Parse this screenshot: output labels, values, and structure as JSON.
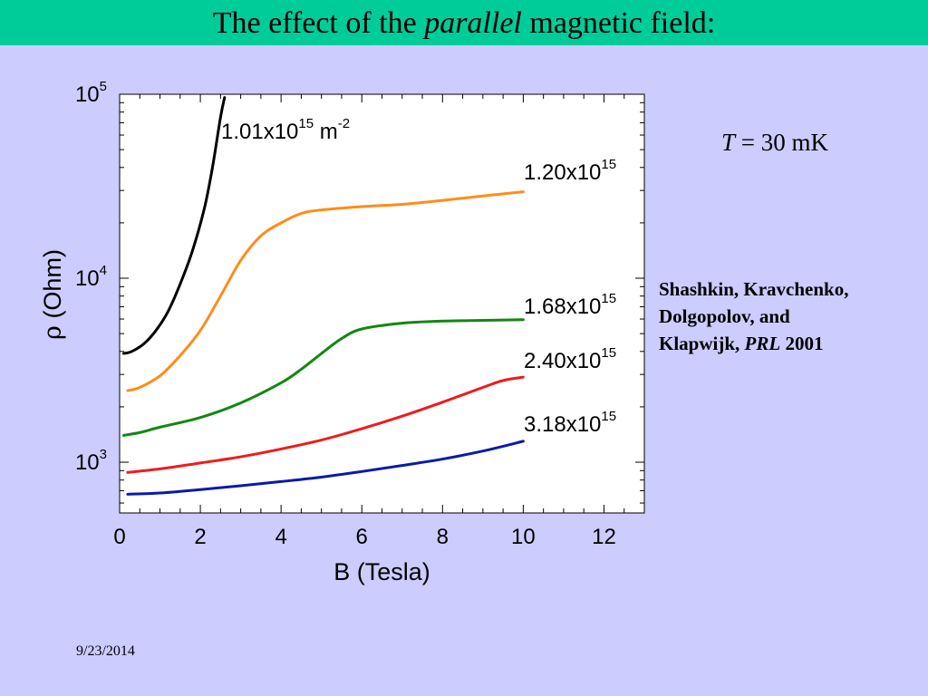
{
  "slide": {
    "title_before": "The effect of the ",
    "title_emph": "parallel",
    "title_after": " magnetic field:",
    "temperature_symbol": "T",
    "temperature_value": " = 30 mK",
    "citation_line1": "Shashkin, Kravchenko,",
    "citation_line2": "Dolgopolov, and",
    "citation_line3_before": "Klapwijk, ",
    "citation_journal": "PRL",
    "citation_year": " 2001",
    "date": "9/23/2014"
  },
  "colors": {
    "title_bar": "#00cc99",
    "background": "#ccccff",
    "plot_area": "#ffffff"
  },
  "chart_data": {
    "type": "line",
    "xlabel": "B (Tesla)",
    "ylabel_symbol": "ρ",
    "ylabel_unit": " (Ohm)",
    "xlim": [
      0,
      13
    ],
    "ylim": [
      530,
      100000
    ],
    "yscale": "log",
    "x_ticks": [
      0,
      2,
      4,
      6,
      8,
      10,
      12
    ],
    "y_ticks": [
      {
        "value": 1000,
        "base": "10",
        "exp": "3"
      },
      {
        "value": 10000,
        "base": "10",
        "exp": "4"
      },
      {
        "value": 100000,
        "base": "10",
        "exp": "5"
      }
    ],
    "series": [
      {
        "label": "1.01x10",
        "label_exp": "15",
        "label_suffix": " m",
        "label_suffix_exp": "-2",
        "color": "#000000",
        "points": [
          [
            0.1,
            3900
          ],
          [
            0.3,
            4000
          ],
          [
            0.6,
            4400
          ],
          [
            0.9,
            5200
          ],
          [
            1.2,
            6600
          ],
          [
            1.5,
            9300
          ],
          [
            1.8,
            14000
          ],
          [
            2.1,
            24000
          ],
          [
            2.3,
            40000
          ],
          [
            2.5,
            75000
          ],
          [
            2.6,
            96000
          ]
        ]
      },
      {
        "label": "1.20x10",
        "label_exp": "15",
        "color": "#ff8c1a",
        "points": [
          [
            0.2,
            2450
          ],
          [
            0.5,
            2550
          ],
          [
            1.0,
            2950
          ],
          [
            1.5,
            3800
          ],
          [
            2.0,
            5200
          ],
          [
            2.5,
            8000
          ],
          [
            3.0,
            12500
          ],
          [
            3.5,
            17000
          ],
          [
            4.0,
            20000
          ],
          [
            4.5,
            22500
          ],
          [
            5.0,
            23500
          ],
          [
            6.0,
            24500
          ],
          [
            7.0,
            25200
          ],
          [
            8.0,
            26500
          ],
          [
            9.0,
            28000
          ],
          [
            10.0,
            29500
          ]
        ]
      },
      {
        "label": "1.68x10",
        "label_exp": "15",
        "color": "#118811",
        "points": [
          [
            0.1,
            1400
          ],
          [
            0.5,
            1450
          ],
          [
            1.0,
            1550
          ],
          [
            2.0,
            1750
          ],
          [
            3.0,
            2100
          ],
          [
            4.0,
            2700
          ],
          [
            4.5,
            3200
          ],
          [
            5.0,
            3900
          ],
          [
            5.5,
            4700
          ],
          [
            6.0,
            5300
          ],
          [
            7.0,
            5700
          ],
          [
            8.0,
            5850
          ],
          [
            9.0,
            5900
          ],
          [
            10.0,
            5950
          ]
        ]
      },
      {
        "label": "2.40x10",
        "label_exp": "15",
        "color": "#ee1c1c",
        "points": [
          [
            0.2,
            880
          ],
          [
            1.0,
            920
          ],
          [
            2.0,
            990
          ],
          [
            3.0,
            1070
          ],
          [
            4.0,
            1180
          ],
          [
            5.0,
            1320
          ],
          [
            6.0,
            1520
          ],
          [
            7.0,
            1780
          ],
          [
            8.0,
            2120
          ],
          [
            9.0,
            2550
          ],
          [
            9.5,
            2780
          ],
          [
            10.0,
            2900
          ]
        ]
      },
      {
        "label": "3.18x10",
        "label_exp": "15",
        "color": "#0a1aa8",
        "points": [
          [
            0.2,
            670
          ],
          [
            1.0,
            680
          ],
          [
            2.0,
            710
          ],
          [
            3.0,
            745
          ],
          [
            4.0,
            785
          ],
          [
            5.0,
            830
          ],
          [
            6.0,
            890
          ],
          [
            7.0,
            960
          ],
          [
            8.0,
            1040
          ],
          [
            9.0,
            1150
          ],
          [
            10.0,
            1300
          ]
        ]
      }
    ]
  }
}
